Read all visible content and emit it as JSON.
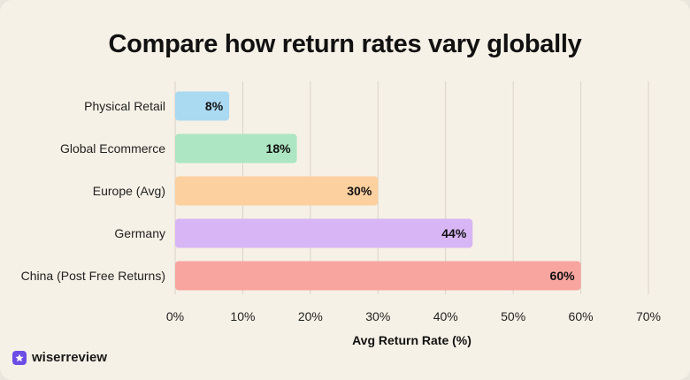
{
  "title": "Compare how return rates vary globally",
  "brand": {
    "name": "wiserreview"
  },
  "chart_data": {
    "type": "bar",
    "orientation": "horizontal",
    "title": "Compare how return rates vary globally",
    "xlabel": "Avg Return Rate (%)",
    "ylabel": "",
    "xlim": [
      0,
      70
    ],
    "x_ticks": [
      "0%",
      "10%",
      "20%",
      "30%",
      "40%",
      "50%",
      "60%",
      "70%"
    ],
    "categories": [
      "Physical Retail",
      "Global Ecommerce",
      "Europe (Avg)",
      "Germany",
      "China (Post Free Returns)"
    ],
    "values": [
      8,
      18,
      30,
      44,
      60
    ],
    "data_labels": [
      "8%",
      "18%",
      "30%",
      "44%",
      "60%"
    ],
    "colors": [
      "#aad9f2",
      "#ace6c2",
      "#fdd0a0",
      "#d8b6f5",
      "#f8a5a0"
    ],
    "grid": true,
    "legend": "none"
  }
}
